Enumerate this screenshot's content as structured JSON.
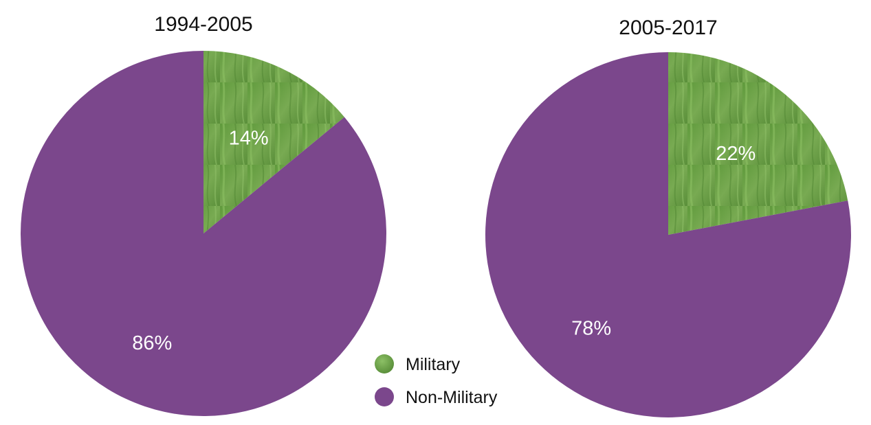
{
  "chart_data": [
    {
      "type": "pie",
      "title": "1994-2005",
      "categories": [
        "Military",
        "Non-Military"
      ],
      "values": [
        14,
        86
      ],
      "labels": [
        "14%",
        "86%"
      ],
      "colors": [
        "#6a9e45",
        "#7b478c"
      ]
    },
    {
      "type": "pie",
      "title": "2005-2017",
      "categories": [
        "Military",
        "Non-Military"
      ],
      "values": [
        22,
        78
      ],
      "labels": [
        "22%",
        "78%"
      ],
      "colors": [
        "#6a9e45",
        "#7b478c"
      ]
    }
  ],
  "legend": {
    "placement": "bottom-center",
    "items": [
      {
        "label": "Military",
        "color": "#6a9e45"
      },
      {
        "label": "Non-Military",
        "color": "#7b478c"
      }
    ]
  }
}
